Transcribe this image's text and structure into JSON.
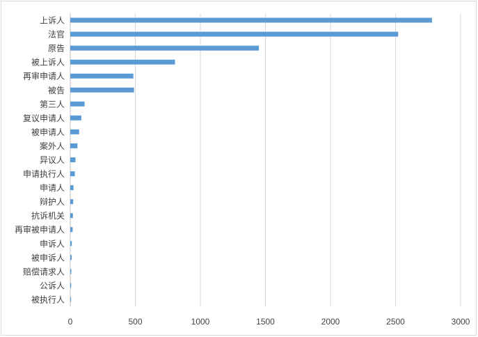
{
  "chart_data": {
    "type": "bar",
    "orientation": "horizontal",
    "categories": [
      "上诉人",
      "法官",
      "原告",
      "被上诉人",
      "再审申请人",
      "被告",
      "第三人",
      "复议申请人",
      "被申请人",
      "案外人",
      "异议人",
      "申请执行人",
      "申请人",
      "辩护人",
      "抗诉机关",
      "再审被申请人",
      "申诉人",
      "被申诉人",
      "赔偿请求人",
      "公诉人",
      "被执行人"
    ],
    "values": [
      2780,
      2520,
      1450,
      805,
      485,
      490,
      110,
      85,
      68,
      55,
      40,
      35,
      25,
      22,
      20,
      18,
      12,
      11,
      8,
      7,
      6
    ],
    "xlim": [
      0,
      3000
    ],
    "xticks": [
      "0",
      "500",
      "1000",
      "1500",
      "2000",
      "2500",
      "3000"
    ],
    "grid": true,
    "legend": "none",
    "bar_color": "#5b9bd5",
    "grid_color": "#d9d9d9"
  }
}
